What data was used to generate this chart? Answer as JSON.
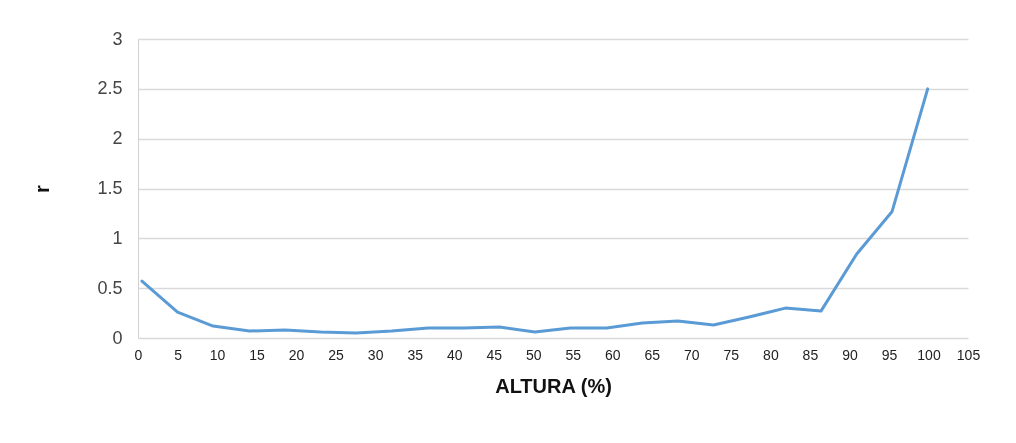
{
  "chart_data": {
    "type": "line",
    "xlabel": "ALTURA (%)",
    "ylabel": "r",
    "x": [
      0.5,
      5.0,
      9.5,
      14.1,
      18.6,
      23.1,
      27.6,
      32.1,
      36.7,
      41.2,
      45.7,
      50.2,
      54.7,
      59.3,
      63.8,
      68.3,
      72.8,
      77.3,
      81.9,
      86.4,
      90.9,
      95.4,
      99.9
    ],
    "series": [
      {
        "color": "#5b9bd5",
        "values": [
          0.57,
          0.26,
          0.12,
          0.07,
          0.08,
          0.06,
          0.05,
          0.07,
          0.1,
          0.1,
          0.11,
          0.06,
          0.1,
          0.1,
          0.15,
          0.17,
          0.13,
          0.21,
          0.3,
          0.27,
          0.84,
          1.27,
          2.5
        ]
      }
    ],
    "xlim": [
      0,
      105
    ],
    "xticks": [
      0,
      5,
      10,
      15,
      20,
      25,
      30,
      35,
      40,
      45,
      50,
      55,
      60,
      65,
      70,
      75,
      80,
      85,
      90,
      95,
      100,
      105
    ],
    "ylim": [
      0,
      3
    ],
    "yticks": [
      0,
      0.5,
      1,
      1.5,
      2,
      2.5,
      3
    ],
    "grid": "y",
    "marker": "none",
    "line_style": "solid"
  }
}
